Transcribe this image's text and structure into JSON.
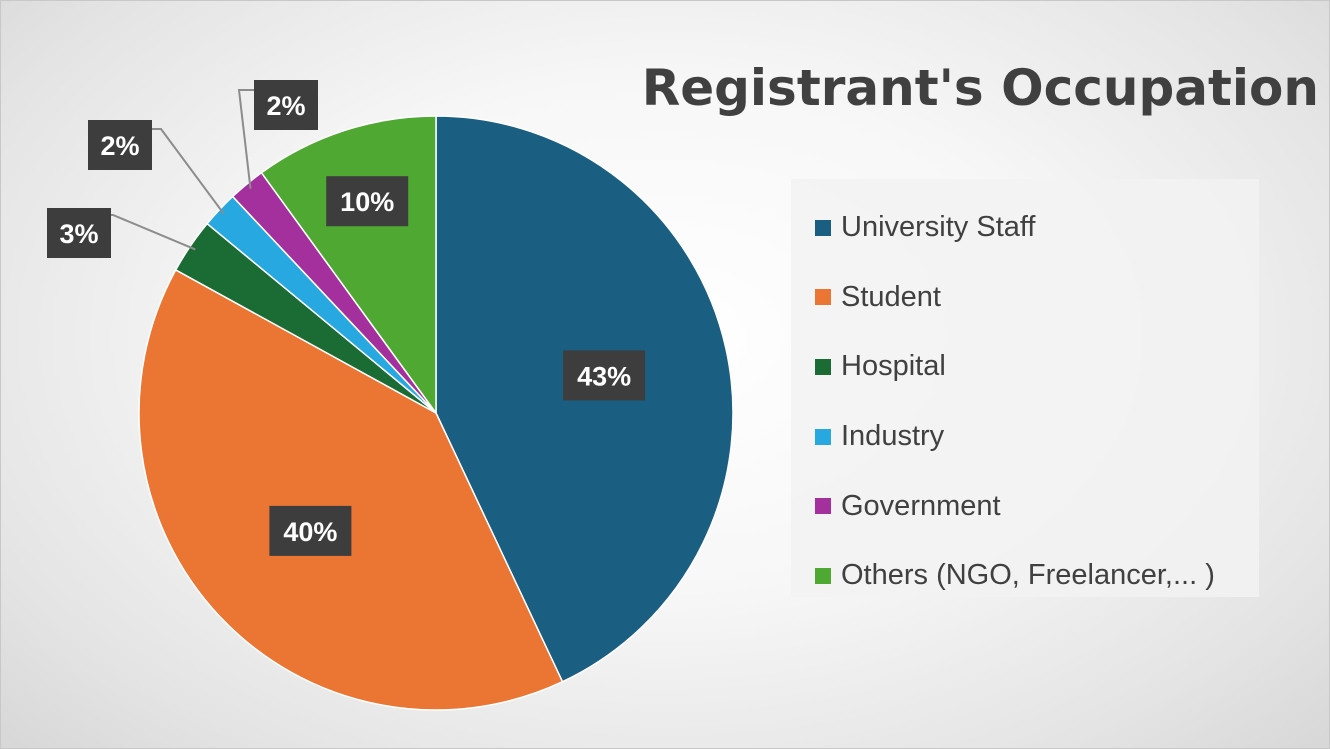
{
  "chart_data": {
    "type": "pie",
    "title": "Registrant's Occupation",
    "slices": [
      {
        "label": "University Staff",
        "value": 43,
        "display": "43%",
        "color": "#1a5e82"
      },
      {
        "label": "Student",
        "value": 40,
        "display": "40%",
        "color": "#eb7532"
      },
      {
        "label": "Hospital",
        "value": 3,
        "display": "3%",
        "color": "#1b6b35"
      },
      {
        "label": "Industry",
        "value": 2,
        "display": "2%",
        "color": "#28a8e0"
      },
      {
        "label": "Government",
        "value": 2,
        "display": "2%",
        "color": "#a3309c"
      },
      {
        "label": "Others (NGO, Freelancer,... )",
        "value": 10,
        "display": "10%",
        "color": "#4fa832"
      }
    ],
    "legend_position": "right",
    "start_angle_deg": 0,
    "direction": "clockwise",
    "label_style": {
      "background": "#3d3d3d",
      "text_color": "#ffffff"
    }
  }
}
